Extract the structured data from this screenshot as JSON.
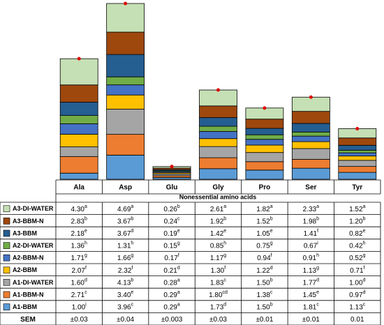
{
  "chart_data": {
    "type": "stacked_bar",
    "x_label": "Nonessential amino acids",
    "categories": [
      "Ala",
      "Asp",
      "Glu",
      "Gly",
      "Pro",
      "Ser",
      "Tyr"
    ],
    "series": [
      {
        "name": "A3-DI-WATER",
        "color": "#c5e0b4",
        "values": [
          4.3,
          4.69,
          0.26,
          2.61,
          1.82,
          2.33,
          1.52
        ],
        "value_labels": [
          "4.30",
          "4.69",
          "0.26",
          "2.61",
          "1.82",
          "2.33",
          "1.52"
        ],
        "letters": [
          "a",
          "a",
          "b",
          "a",
          "a",
          "a",
          "a"
        ]
      },
      {
        "name": "A3-BBM-N",
        "color": "#9e480e",
        "values": [
          2.83,
          3.67,
          0.24,
          1.92,
          1.52,
          1.98,
          1.2
        ],
        "value_labels": [
          "2.83",
          "3.67",
          "0.24",
          "1.92",
          "1.52",
          "1.98",
          "1.20"
        ],
        "letters": [
          "b",
          "b",
          "c",
          "b",
          "b",
          "b",
          "b"
        ]
      },
      {
        "name": "A3-BBM",
        "color": "#255e91",
        "values": [
          2.18,
          3.67,
          0.19,
          1.42,
          1.05,
          1.41,
          0.82
        ],
        "value_labels": [
          "2.18",
          "3.67",
          "0.19",
          "1.42",
          "1.05",
          "1.41",
          "0.82"
        ],
        "letters": [
          "e",
          "d",
          "e",
          "e",
          "e",
          "f",
          "e"
        ]
      },
      {
        "name": "A2-DI-WATER",
        "color": "#70ad47",
        "values": [
          1.36,
          1.31,
          0.15,
          0.85,
          0.75,
          0.67,
          0.42
        ],
        "value_labels": [
          "1.36",
          "1.31",
          "0.15",
          "0.85",
          "0.75",
          "0.67",
          "0.42"
        ],
        "letters": [
          "h",
          "h",
          "g",
          "h",
          "g",
          "i",
          "h"
        ]
      },
      {
        "name": "A2-BBM-N",
        "color": "#4472c4",
        "values": [
          1.71,
          1.66,
          0.17,
          1.17,
          0.94,
          0.91,
          0.52
        ],
        "value_labels": [
          "1.71",
          "1.66",
          "0.17",
          "1.17",
          "0.94",
          "0.91",
          "0.52"
        ],
        "letters": [
          "g",
          "g",
          "f",
          "g",
          "f",
          "h",
          "g"
        ]
      },
      {
        "name": "A2-BBM",
        "color": "#ffc000",
        "values": [
          2.07,
          2.32,
          0.21,
          1.3,
          1.22,
          1.13,
          0.71
        ],
        "value_labels": [
          "2.07",
          "2.32",
          "0.21",
          "1.30",
          "1.22",
          "1.13",
          "0.71"
        ],
        "letters": [
          "f",
          "f",
          "d",
          "f",
          "d",
          "g",
          "f"
        ]
      },
      {
        "name": "A1-DI-WATER",
        "color": "#a5a5a5",
        "values": [
          1.6,
          4.13,
          0.28,
          1.83,
          1.5,
          1.77,
          1.0
        ],
        "value_labels": [
          "1.60",
          "4.13",
          "0.28",
          "1.83",
          "1.50",
          "1.77",
          "1.00"
        ],
        "letters": [
          "d",
          "b",
          "a",
          "c",
          "b",
          "d",
          "d"
        ]
      },
      {
        "name": "A1-BBM-N",
        "color": "#ed7d31",
        "values": [
          2.71,
          3.4,
          0.29,
          1.8,
          1.38,
          1.45,
          0.97
        ],
        "value_labels": [
          "2.71",
          "3.40",
          "0.29",
          "1.80",
          "1.38",
          "1.45",
          "0.97"
        ],
        "letters": [
          "c",
          "e",
          "a",
          "cd",
          "c",
          "e",
          "d"
        ]
      },
      {
        "name": "A1-BBM",
        "color": "#5b9bd5",
        "values": [
          1.0,
          3.96,
          0.29,
          1.73,
          1.5,
          1.81,
          1.13
        ],
        "value_labels": [
          "1.00",
          "3.96",
          "0.29",
          "1.73",
          "1.50",
          "1.81",
          "1.13"
        ],
        "letters": [
          "i",
          "c",
          "a",
          "d",
          "b",
          "c",
          "c"
        ]
      }
    ],
    "sem": {
      "label": "SEM",
      "values": [
        "±0.03",
        "±0.04",
        "±0.003",
        "±0.03",
        "±0.01",
        "±0.01",
        "0.01"
      ]
    }
  }
}
